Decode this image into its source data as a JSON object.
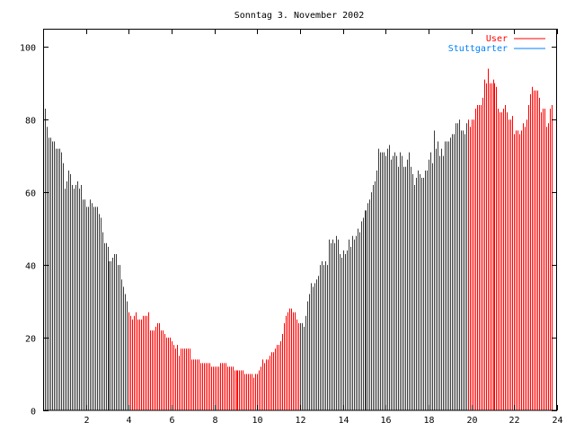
{
  "chart_data": {
    "type": "bar",
    "title": "Sonntag 3. November 2002",
    "xlabel": "",
    "ylabel": "",
    "xlim": [
      0,
      24
    ],
    "ylim": [
      0,
      105
    ],
    "x_step_minutes": 5,
    "x_ticks": [
      "2",
      "4",
      "6",
      "8",
      "10",
      "12",
      "14",
      "16",
      "18",
      "20",
      "22",
      "24"
    ],
    "x_tick_values": [
      2,
      4,
      6,
      8,
      10,
      12,
      14,
      16,
      18,
      20,
      22,
      24
    ],
    "y_ticks": [
      "0",
      "20",
      "40",
      "60",
      "80",
      "100"
    ],
    "y_tick_values": [
      0,
      20,
      40,
      60,
      80,
      100
    ],
    "legend_position": "top-right",
    "series": [
      {
        "name": "User",
        "color": "#ff0000",
        "index_ranges": [
          [
            48,
            143
          ],
          [
            238,
            285
          ]
        ]
      },
      {
        "name": "Stuttgarter",
        "color": "#0080ff",
        "bar_color": "#3c3c3c"
      }
    ],
    "values": [
      83,
      83,
      78,
      75,
      75,
      74,
      74,
      72,
      72,
      72,
      71,
      68,
      61,
      63,
      66,
      65,
      62,
      61,
      62,
      63,
      61,
      62,
      58,
      58,
      56,
      56,
      58,
      57,
      56,
      56,
      56,
      54,
      53,
      49,
      46,
      46,
      45,
      41,
      41,
      42,
      43,
      43,
      40,
      40,
      36,
      34,
      32,
      30,
      27,
      26,
      25,
      26,
      27,
      25,
      25,
      25,
      26,
      26,
      26,
      27,
      22,
      22,
      22,
      23,
      24,
      24,
      22,
      22,
      21,
      20,
      20,
      20,
      19,
      18,
      17,
      18,
      15,
      17,
      17,
      17,
      17,
      17,
      17,
      14,
      14,
      14,
      14,
      14,
      13,
      13,
      13,
      13,
      13,
      13,
      12,
      12,
      12,
      12,
      12,
      13,
      13,
      13,
      13,
      12,
      12,
      12,
      12,
      11,
      11,
      11,
      11,
      11,
      11,
      10,
      10,
      10,
      10,
      10,
      9,
      10,
      10,
      11,
      12,
      14,
      13,
      14,
      14,
      15,
      16,
      16,
      17,
      18,
      18,
      19,
      21,
      24,
      26,
      27,
      28,
      28,
      27,
      27,
      25,
      24,
      24,
      24,
      23,
      26,
      30,
      32,
      35,
      34,
      35,
      36,
      37,
      40,
      41,
      40,
      41,
      40,
      47,
      46,
      47,
      46,
      48,
      47,
      43,
      42,
      44,
      43,
      44,
      47,
      45,
      48,
      47,
      48,
      50,
      49,
      52,
      53,
      55,
      55,
      57,
      58,
      60,
      62,
      63,
      66,
      72,
      71,
      71,
      71,
      70,
      72,
      73,
      69,
      70,
      71,
      70,
      67,
      71,
      70,
      67,
      67,
      69,
      71,
      67,
      65,
      62,
      64,
      66,
      65,
      64,
      64,
      66,
      66,
      69,
      71,
      68,
      77,
      72,
      74,
      70,
      72,
      70,
      74,
      74,
      74,
      75,
      76,
      76,
      79,
      79,
      80,
      77,
      77,
      76,
      79,
      80,
      78,
      80,
      80,
      83,
      84,
      84,
      84,
      86,
      91,
      90,
      94,
      90,
      90,
      91,
      90,
      89,
      83,
      82,
      82,
      83,
      84,
      82,
      80,
      80,
      81,
      76,
      77,
      77,
      76,
      77,
      79,
      78,
      80,
      84,
      87,
      89,
      88,
      88,
      88,
      86,
      82,
      83,
      83,
      78,
      79,
      83,
      84
    ]
  }
}
